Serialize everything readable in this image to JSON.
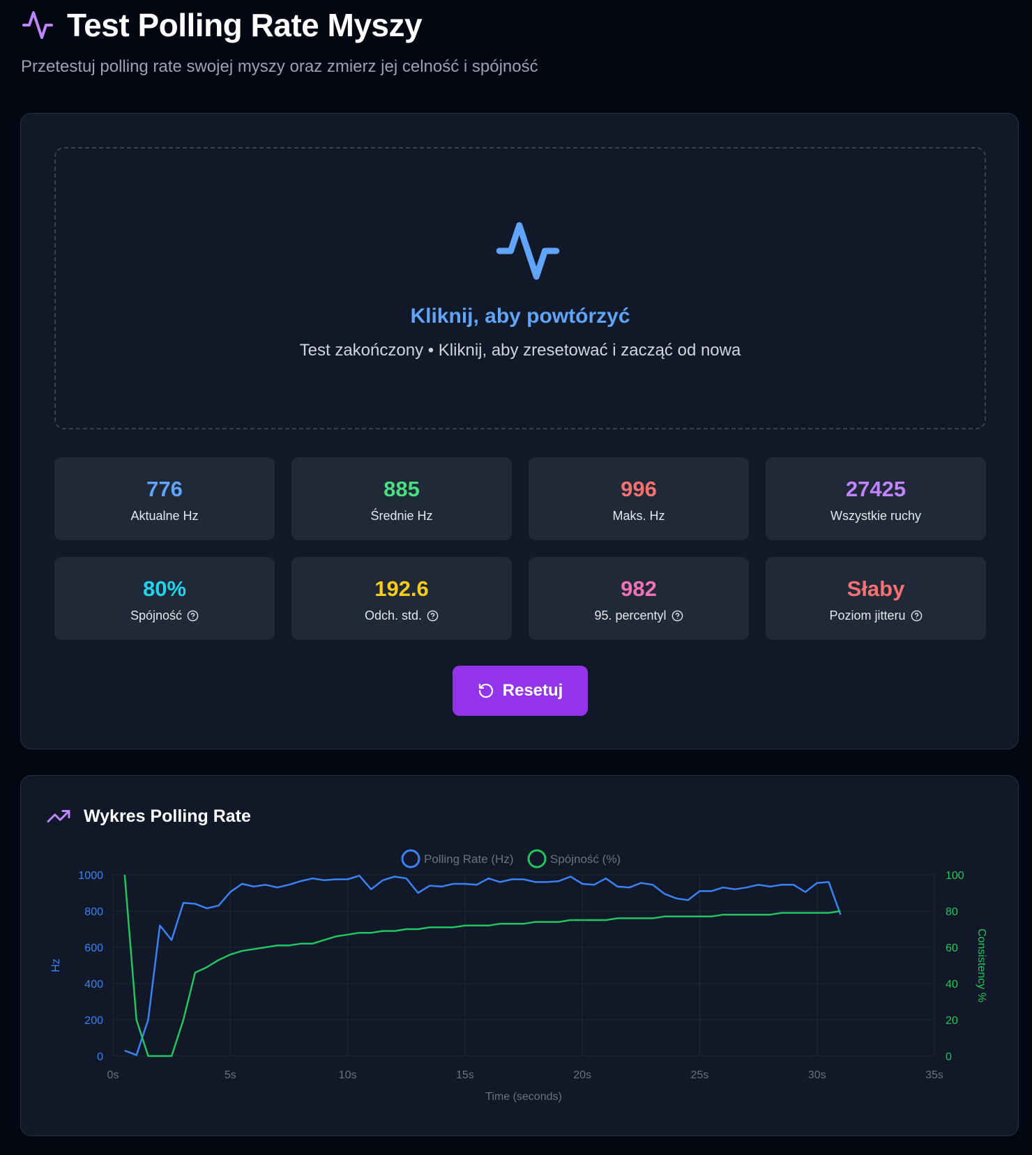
{
  "header": {
    "title": "Test Polling Rate Myszy",
    "subtitle": "Przetestuj polling rate swojej myszy oraz zmierz jej celność i spójność"
  },
  "test_area": {
    "title": "Kliknij, aby powtórzyć",
    "subtitle": "Test zakończony • Kliknij, aby zresetować i zacząć od nowa"
  },
  "stats": [
    {
      "value": "776",
      "label": "Aktualne Hz",
      "color": "#60a5fa",
      "help": false
    },
    {
      "value": "885",
      "label": "Średnie Hz",
      "color": "#4ade80",
      "help": false
    },
    {
      "value": "996",
      "label": "Maks. Hz",
      "color": "#f87171",
      "help": false
    },
    {
      "value": "27425",
      "label": "Wszystkie ruchy",
      "color": "#c084fc",
      "help": false
    },
    {
      "value": "80%",
      "label": "Spójność",
      "color": "#22d3ee",
      "help": true
    },
    {
      "value": "192.6",
      "label": "Odch. std.",
      "color": "#facc15",
      "help": true
    },
    {
      "value": "982",
      "label": "95. percentyl",
      "color": "#f472b6",
      "help": true
    },
    {
      "value": "Słaby",
      "label": "Poziom jitteru",
      "color": "#f87171",
      "help": true
    }
  ],
  "reset_button": {
    "label": "Resetuj"
  },
  "chart_section": {
    "title": "Wykres Polling Rate"
  },
  "chart_data": {
    "type": "line",
    "xlabel": "Time (seconds)",
    "x_ticks": [
      "0s",
      "5s",
      "10s",
      "15s",
      "20s",
      "25s",
      "30s",
      "35s"
    ],
    "xlim": [
      0,
      35
    ],
    "y_left": {
      "label": "Hz",
      "lim": [
        0,
        1000
      ],
      "ticks": [
        0,
        200,
        400,
        600,
        800,
        1000
      ],
      "color": "#3b82f6"
    },
    "y_right": {
      "label": "Consistency %",
      "lim": [
        0,
        100
      ],
      "ticks": [
        0,
        20,
        40,
        60,
        80,
        100
      ],
      "color": "#22c55e"
    },
    "series": [
      {
        "name": "Polling Rate (Hz)",
        "axis": "left",
        "color": "#3b82f6",
        "x": [
          0.5,
          1.0,
          1.5,
          2.0,
          2.5,
          3.0,
          3.5,
          4.0,
          4.5,
          5.0,
          5.5,
          6.0,
          6.5,
          7.0,
          7.5,
          8.0,
          8.5,
          9.0,
          9.5,
          10.0,
          10.5,
          11.0,
          11.5,
          12.0,
          12.5,
          13.0,
          13.5,
          14.0,
          14.5,
          15.0,
          15.5,
          16.0,
          16.5,
          17.0,
          17.5,
          18.0,
          18.5,
          19.0,
          19.5,
          20.0,
          20.5,
          21.0,
          21.5,
          22.0,
          22.5,
          23.0,
          23.5,
          24.0,
          24.5,
          25.0,
          25.5,
          26.0,
          26.5,
          27.0,
          27.5,
          28.0,
          28.5,
          29.0,
          29.5,
          30.0,
          30.5,
          31.0
        ],
        "values": [
          30,
          5,
          200,
          720,
          640,
          845,
          840,
          815,
          830,
          905,
          950,
          935,
          945,
          930,
          945,
          965,
          980,
          970,
          975,
          975,
          995,
          920,
          970,
          990,
          980,
          900,
          940,
          935,
          950,
          950,
          945,
          980,
          960,
          975,
          975,
          960,
          960,
          965,
          990,
          950,
          945,
          980,
          935,
          930,
          955,
          945,
          895,
          870,
          860,
          910,
          910,
          930,
          920,
          930,
          945,
          935,
          945,
          945,
          905,
          955,
          960,
          780
        ]
      },
      {
        "name": "Spójność (%)",
        "axis": "right",
        "color": "#22c55e",
        "x": [
          0.5,
          1.0,
          1.5,
          2.0,
          2.5,
          3.0,
          3.5,
          4.0,
          4.5,
          5.0,
          5.5,
          6.0,
          6.5,
          7.0,
          7.5,
          8.0,
          8.5,
          9.0,
          9.5,
          10.0,
          10.5,
          11.0,
          11.5,
          12.0,
          12.5,
          13.0,
          13.5,
          14.0,
          14.5,
          15.0,
          15.5,
          16.0,
          16.5,
          17.0,
          17.5,
          18.0,
          18.5,
          19.0,
          19.5,
          20.0,
          20.5,
          21.0,
          21.5,
          22.0,
          22.5,
          23.0,
          23.5,
          24.0,
          24.5,
          25.0,
          25.5,
          26.0,
          26.5,
          27.0,
          27.5,
          28.0,
          28.5,
          29.0,
          29.5,
          30.0,
          30.5,
          31.0
        ],
        "values": [
          100,
          20,
          0,
          0,
          0,
          20,
          46,
          49,
          53,
          56,
          58,
          59,
          60,
          61,
          61,
          62,
          62,
          64,
          66,
          67,
          68,
          68,
          69,
          69,
          70,
          70,
          71,
          71,
          71,
          72,
          72,
          72,
          73,
          73,
          73,
          74,
          74,
          74,
          75,
          75,
          75,
          75,
          76,
          76,
          76,
          76,
          77,
          77,
          77,
          77,
          77,
          78,
          78,
          78,
          78,
          78,
          79,
          79,
          79,
          79,
          79,
          80
        ]
      }
    ]
  }
}
